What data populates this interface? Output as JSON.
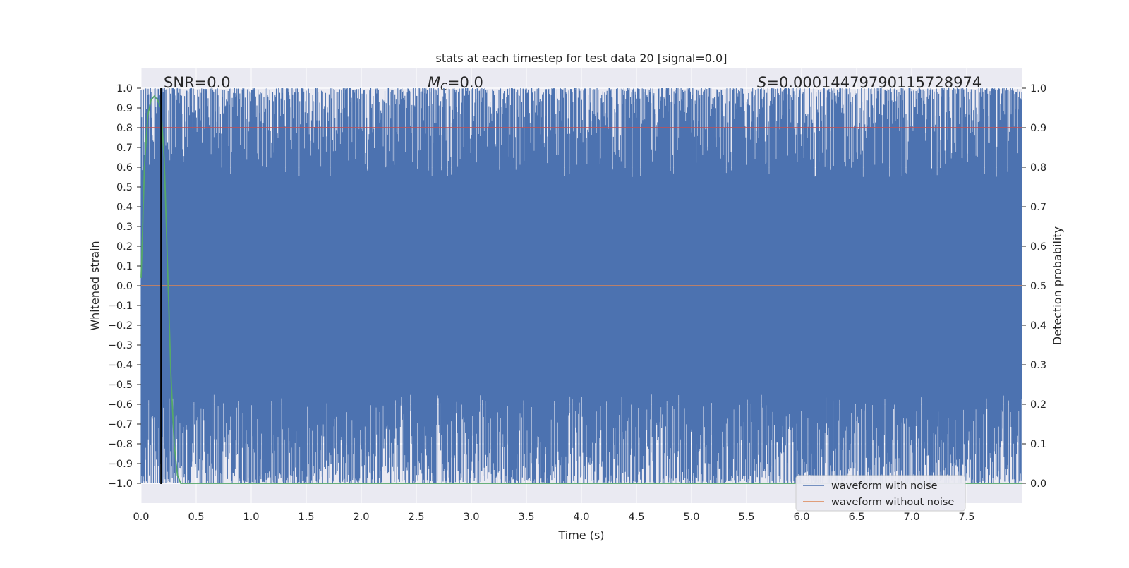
{
  "chart_data": {
    "type": "line",
    "title": "stats at each timestep for test data 20 [signal=0.0]",
    "xlabel": "Time (s)",
    "ylabel": "Whitened strain",
    "y2label": "Detection probability",
    "xlim": [
      0.0,
      8.0
    ],
    "ylim": [
      -1.1,
      1.1
    ],
    "y2lim": [
      -0.05,
      1.05
    ],
    "x_ticks": [
      0.0,
      0.5,
      1.0,
      1.5,
      2.0,
      2.5,
      3.0,
      3.5,
      4.0,
      4.5,
      5.0,
      5.5,
      6.0,
      6.5,
      7.0,
      7.5
    ],
    "x_tick_labels": [
      "0.0",
      "0.5",
      "1.0",
      "1.5",
      "2.0",
      "2.5",
      "3.0",
      "3.5",
      "4.0",
      "4.5",
      "5.0",
      "5.5",
      "6.0",
      "6.5",
      "7.0",
      "7.5"
    ],
    "y_ticks": [
      1.0,
      0.9,
      0.8,
      0.7,
      0.6,
      0.5,
      0.4,
      0.3,
      0.2,
      0.1,
      0.0,
      -0.1,
      -0.2,
      -0.3,
      -0.4,
      -0.5,
      -0.6,
      -0.7,
      -0.8,
      -0.9,
      -1.0
    ],
    "y_tick_labels": [
      "1.0",
      "0.9",
      "0.8",
      "0.7",
      "0.6",
      "0.5",
      "0.4",
      "0.3",
      "0.2",
      "0.1",
      "0.0",
      "−0.1",
      "−0.2",
      "−0.3",
      "−0.4",
      "−0.5",
      "−0.6",
      "−0.7",
      "−0.8",
      "−0.9",
      "−1.0"
    ],
    "y2_ticks": [
      1.0,
      0.9,
      0.8,
      0.7,
      0.6,
      0.5,
      0.4,
      0.3,
      0.2,
      0.1,
      0.0
    ],
    "y2_tick_labels": [
      "1.0",
      "0.9",
      "0.8",
      "0.7",
      "0.6",
      "0.5",
      "0.4",
      "0.3",
      "0.2",
      "0.1",
      "0.0"
    ],
    "grid": true,
    "legend_placement": "lower-right",
    "series": [
      {
        "name": "waveform with noise",
        "color": "#4c72b0",
        "axis": "left",
        "description_values": {
          "dense_noise_range": [
            -1.0,
            1.0
          ],
          "sample_count": 1500,
          "x_range": [
            0.0,
            8.0
          ]
        }
      },
      {
        "name": "waveform without noise",
        "color": "#dd8452",
        "axis": "left",
        "x": [
          0.0,
          8.0
        ],
        "y": [
          0.0,
          0.0
        ]
      },
      {
        "color": "#55a868",
        "axis": "right",
        "x": [
          0.0,
          0.03,
          0.06,
          0.09,
          0.12,
          0.15,
          0.18,
          0.21,
          0.24,
          0.27,
          0.3,
          0.33,
          0.36,
          0.4,
          0.5,
          8.0
        ],
        "y": [
          0.52,
          0.8,
          0.93,
          0.97,
          0.98,
          0.97,
          0.95,
          0.82,
          0.55,
          0.28,
          0.1,
          0.02,
          0.0,
          0.0,
          0.0,
          0.0
        ]
      }
    ],
    "threshold_line": {
      "axis": "right",
      "value": 0.9,
      "color": "#c44e52"
    },
    "vertical_marker": {
      "x": 0.18,
      "color": "#000000"
    },
    "annotations": [
      {
        "text": "SNR=0.0",
        "x": 0.2
      },
      {
        "html_math": true,
        "prefix": "M",
        "sub": "C",
        "text": "=0.0",
        "x": 2.6
      },
      {
        "prefix": "S",
        "text": "=0.00014479790115728974",
        "x": 5.6
      }
    ]
  }
}
